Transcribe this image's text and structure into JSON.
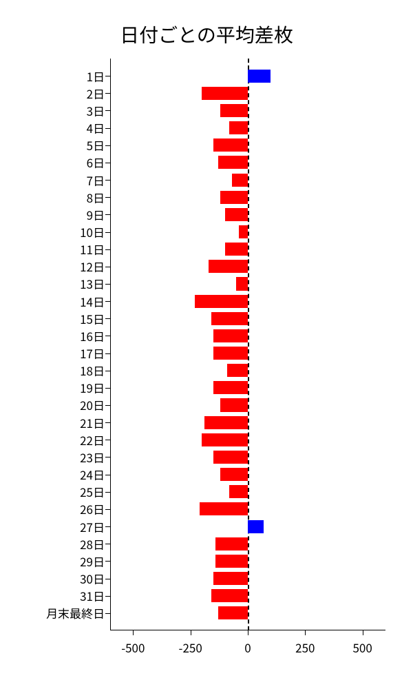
{
  "chart": {
    "type": "bar-horizontal",
    "title": "日付ごとの平均差枚",
    "title_fontsize": 28,
    "label_fontsize": 17,
    "background_color": "#ffffff",
    "xlim": [
      -600,
      600
    ],
    "xticks": [
      -500,
      -250,
      0,
      250,
      500
    ],
    "xtick_labels": [
      "-500",
      "-250",
      "0",
      "250",
      "500"
    ],
    "zero_line": true,
    "zero_line_style": "dashed",
    "zero_line_color": "#000000",
    "axis_color": "#000000",
    "positive_color": "#0000ff",
    "negative_color": "#ff0000",
    "bar_height_ratio": 0.76,
    "categories": [
      "1日",
      "2日",
      "3日",
      "4日",
      "5日",
      "6日",
      "7日",
      "8日",
      "9日",
      "10日",
      "11日",
      "12日",
      "13日",
      "14日",
      "15日",
      "16日",
      "17日",
      "18日",
      "19日",
      "20日",
      "21日",
      "22日",
      "23日",
      "24日",
      "25日",
      "26日",
      "27日",
      "28日",
      "29日",
      "30日",
      "31日",
      "月末最終日"
    ],
    "values": [
      100,
      -200,
      -120,
      -80,
      -150,
      -130,
      -70,
      -120,
      -100,
      -40,
      -100,
      -170,
      -50,
      -230,
      -160,
      -150,
      -150,
      -90,
      -150,
      -120,
      -190,
      -200,
      -150,
      -120,
      -80,
      -210,
      70,
      -140,
      -140,
      -150,
      -160,
      -130
    ]
  }
}
